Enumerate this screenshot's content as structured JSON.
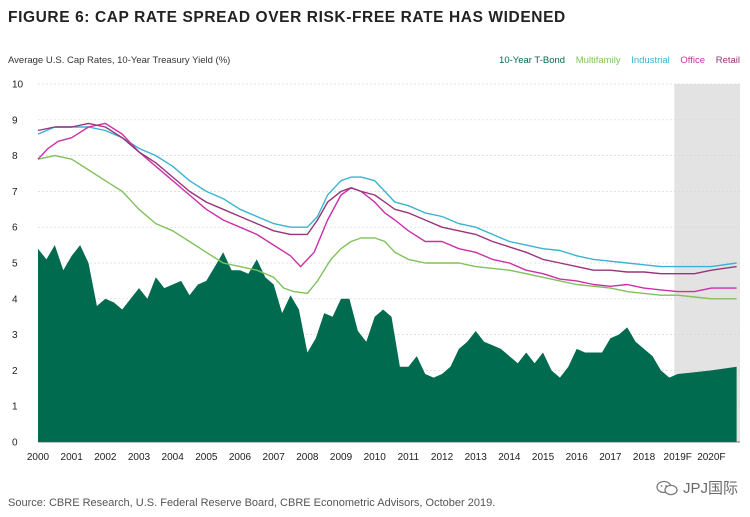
{
  "header": {
    "title": "FIGURE 6: CAP RATE SPREAD OVER RISK-FREE RATE HAS WIDENED"
  },
  "footer": {
    "source": "Source: CBRE Research, U.S. Federal Reserve Board, CBRE Econometric Advisors, October 2019."
  },
  "watermark": {
    "text": "JPJ国际"
  },
  "colors": {
    "tbond": "#006b4f",
    "multifamily": "#80c15c",
    "industrial": "#38b4d0",
    "office": "#cc2fa8",
    "retail": "#97357a",
    "forecast_shade": "#e3e3e3",
    "grid": "#d6d6d6"
  },
  "chart_data": {
    "type": "line+area",
    "ylabel": "Average U.S. Cap Rates, 10-Year Treasury Yield (%)",
    "ylim": [
      0,
      10
    ],
    "yticks": [
      "0",
      "1",
      "2",
      "3",
      "4",
      "5",
      "6",
      "7",
      "8",
      "9",
      "10"
    ],
    "xlim": [
      2000,
      2020.85
    ],
    "xticks": [
      {
        "label": "2000",
        "value": 2000
      },
      {
        "label": "2001",
        "value": 2001
      },
      {
        "label": "2002",
        "value": 2002
      },
      {
        "label": "2003",
        "value": 2003
      },
      {
        "label": "2004",
        "value": 2004
      },
      {
        "label": "2005",
        "value": 2005
      },
      {
        "label": "2006",
        "value": 2006
      },
      {
        "label": "2007",
        "value": 2007
      },
      {
        "label": "2008",
        "value": 2008
      },
      {
        "label": "2009",
        "value": 2009
      },
      {
        "label": "2010",
        "value": 2010
      },
      {
        "label": "2011",
        "value": 2011
      },
      {
        "label": "2012",
        "value": 2012
      },
      {
        "label": "2013",
        "value": 2013
      },
      {
        "label": "2014",
        "value": 2014
      },
      {
        "label": "2015",
        "value": 2015
      },
      {
        "label": "2016",
        "value": 2016
      },
      {
        "label": "2017",
        "value": 2017
      },
      {
        "label": "2018",
        "value": 2018
      },
      {
        "label": "2019F",
        "value": 2019
      },
      {
        "label": "2020F",
        "value": 2020
      }
    ],
    "forecast_start": 2018.9,
    "series": [
      {
        "name": "10-Year T-Bond",
        "key": "tbond",
        "style": "area",
        "x": [
          2000,
          2000.25,
          2000.5,
          2000.75,
          2001,
          2001.25,
          2001.5,
          2001.75,
          2002,
          2002.25,
          2002.5,
          2002.75,
          2003,
          2003.25,
          2003.5,
          2003.75,
          2004,
          2004.25,
          2004.5,
          2004.75,
          2005,
          2005.25,
          2005.5,
          2005.75,
          2006,
          2006.25,
          2006.5,
          2006.75,
          2007,
          2007.25,
          2007.5,
          2007.75,
          2008,
          2008.25,
          2008.5,
          2008.75,
          2009,
          2009.25,
          2009.5,
          2009.75,
          2010,
          2010.25,
          2010.5,
          2010.75,
          2011,
          2011.25,
          2011.5,
          2011.75,
          2012,
          2012.25,
          2012.5,
          2012.75,
          2013,
          2013.25,
          2013.5,
          2013.75,
          2014,
          2014.25,
          2014.5,
          2014.75,
          2015,
          2015.25,
          2015.5,
          2015.75,
          2016,
          2016.25,
          2016.5,
          2016.75,
          2017,
          2017.25,
          2017.5,
          2017.75,
          2018,
          2018.25,
          2018.5,
          2018.75,
          2019,
          2019.5,
          2020,
          2020.75
        ],
        "values": [
          5.4,
          5.1,
          5.5,
          4.8,
          5.2,
          5.5,
          5.0,
          3.8,
          4.0,
          3.9,
          3.7,
          4.0,
          4.3,
          4.0,
          4.6,
          4.3,
          4.4,
          4.5,
          4.1,
          4.4,
          4.5,
          4.9,
          5.3,
          4.8,
          4.8,
          4.7,
          5.1,
          4.6,
          4.4,
          3.6,
          4.1,
          3.7,
          2.5,
          2.9,
          3.6,
          3.5,
          4.0,
          4.0,
          3.1,
          2.8,
          3.5,
          3.7,
          3.5,
          2.1,
          2.1,
          2.4,
          1.9,
          1.8,
          1.9,
          2.1,
          2.6,
          2.8,
          3.1,
          2.8,
          2.7,
          2.6,
          2.4,
          2.2,
          2.5,
          2.2,
          2.5,
          2.0,
          1.8,
          2.1,
          2.6,
          2.5,
          2.5,
          2.5,
          2.9,
          3.0,
          3.2,
          2.8,
          2.6,
          2.4,
          2.0,
          1.8,
          1.9,
          1.95,
          2.0,
          2.1
        ]
      },
      {
        "name": "Multifamily",
        "key": "multifamily",
        "style": "line",
        "x": [
          2000,
          2000.5,
          2001,
          2001.5,
          2002,
          2002.5,
          2003,
          2003.5,
          2004,
          2004.5,
          2005,
          2005.5,
          2006,
          2006.5,
          2007,
          2007.3,
          2007.6,
          2008,
          2008.3,
          2008.7,
          2009,
          2009.3,
          2009.6,
          2010,
          2010.3,
          2010.6,
          2011,
          2011.5,
          2012,
          2012.5,
          2013,
          2013.5,
          2014,
          2014.5,
          2015,
          2015.5,
          2016,
          2016.5,
          2017,
          2017.5,
          2018,
          2018.5,
          2019,
          2019.5,
          2020,
          2020.75
        ],
        "values": [
          7.9,
          8.0,
          7.9,
          7.6,
          7.3,
          7.0,
          6.5,
          6.1,
          5.9,
          5.6,
          5.3,
          5.0,
          4.9,
          4.8,
          4.6,
          4.3,
          4.2,
          4.15,
          4.5,
          5.1,
          5.4,
          5.6,
          5.7,
          5.7,
          5.6,
          5.3,
          5.1,
          5.0,
          5.0,
          5.0,
          4.9,
          4.85,
          4.8,
          4.7,
          4.6,
          4.5,
          4.4,
          4.35,
          4.3,
          4.2,
          4.15,
          4.1,
          4.1,
          4.05,
          4.0,
          4.0
        ]
      },
      {
        "name": "Industrial",
        "key": "industrial",
        "style": "line",
        "x": [
          2000,
          2000.5,
          2001,
          2001.5,
          2002,
          2002.5,
          2003,
          2003.5,
          2004,
          2004.5,
          2005,
          2005.5,
          2006,
          2006.5,
          2007,
          2007.5,
          2008,
          2008.3,
          2008.6,
          2009,
          2009.3,
          2009.6,
          2010,
          2010.3,
          2010.6,
          2011,
          2011.5,
          2012,
          2012.5,
          2013,
          2013.5,
          2014,
          2014.5,
          2015,
          2015.5,
          2016,
          2016.5,
          2017,
          2017.5,
          2018,
          2018.5,
          2019,
          2019.5,
          2020,
          2020.75
        ],
        "values": [
          8.6,
          8.8,
          8.8,
          8.8,
          8.7,
          8.5,
          8.2,
          8.0,
          7.7,
          7.3,
          7.0,
          6.8,
          6.5,
          6.3,
          6.1,
          6.0,
          6.0,
          6.3,
          6.9,
          7.3,
          7.4,
          7.4,
          7.3,
          7.0,
          6.7,
          6.6,
          6.4,
          6.3,
          6.1,
          6.0,
          5.8,
          5.6,
          5.5,
          5.4,
          5.35,
          5.2,
          5.1,
          5.05,
          5.0,
          4.95,
          4.9,
          4.9,
          4.9,
          4.9,
          5.0
        ]
      },
      {
        "name": "Office",
        "key": "office",
        "style": "line",
        "x": [
          2000,
          2000.3,
          2000.6,
          2001,
          2001.5,
          2002,
          2002.5,
          2003,
          2003.5,
          2004,
          2004.5,
          2005,
          2005.5,
          2006,
          2006.5,
          2007,
          2007.5,
          2007.8,
          2008.2,
          2008.6,
          2009,
          2009.3,
          2009.6,
          2010,
          2010.3,
          2010.6,
          2011,
          2011.5,
          2012,
          2012.5,
          2013,
          2013.5,
          2014,
          2014.5,
          2015,
          2015.5,
          2016,
          2016.5,
          2017,
          2017.5,
          2018,
          2018.5,
          2019,
          2019.5,
          2020,
          2020.75
        ],
        "values": [
          7.9,
          8.2,
          8.4,
          8.5,
          8.8,
          8.9,
          8.6,
          8.1,
          7.7,
          7.3,
          6.9,
          6.5,
          6.2,
          6.0,
          5.8,
          5.5,
          5.2,
          4.9,
          5.3,
          6.2,
          6.9,
          7.1,
          7.0,
          6.7,
          6.4,
          6.2,
          5.9,
          5.6,
          5.6,
          5.4,
          5.3,
          5.1,
          5.0,
          4.8,
          4.7,
          4.55,
          4.5,
          4.4,
          4.35,
          4.4,
          4.3,
          4.25,
          4.2,
          4.2,
          4.3,
          4.3
        ]
      },
      {
        "name": "Retail",
        "key": "retail",
        "style": "line",
        "x": [
          2000,
          2000.5,
          2001,
          2001.5,
          2002,
          2002.5,
          2003,
          2003.5,
          2004,
          2004.5,
          2005,
          2005.5,
          2006,
          2006.5,
          2007,
          2007.5,
          2008,
          2008.3,
          2008.6,
          2009,
          2009.3,
          2009.6,
          2010,
          2010.3,
          2010.6,
          2011,
          2011.5,
          2012,
          2012.5,
          2013,
          2013.5,
          2014,
          2014.5,
          2015,
          2015.5,
          2016,
          2016.5,
          2017,
          2017.5,
          2018,
          2018.5,
          2019,
          2019.5,
          2020,
          2020.75
        ],
        "values": [
          8.7,
          8.8,
          8.8,
          8.9,
          8.8,
          8.5,
          8.1,
          7.8,
          7.4,
          7.0,
          6.7,
          6.5,
          6.3,
          6.1,
          5.9,
          5.8,
          5.8,
          6.2,
          6.7,
          7.0,
          7.1,
          7.0,
          6.9,
          6.7,
          6.5,
          6.4,
          6.2,
          6.0,
          5.9,
          5.8,
          5.6,
          5.45,
          5.3,
          5.1,
          5.0,
          4.9,
          4.8,
          4.8,
          4.75,
          4.75,
          4.7,
          4.7,
          4.7,
          4.8,
          4.9
        ]
      }
    ]
  }
}
